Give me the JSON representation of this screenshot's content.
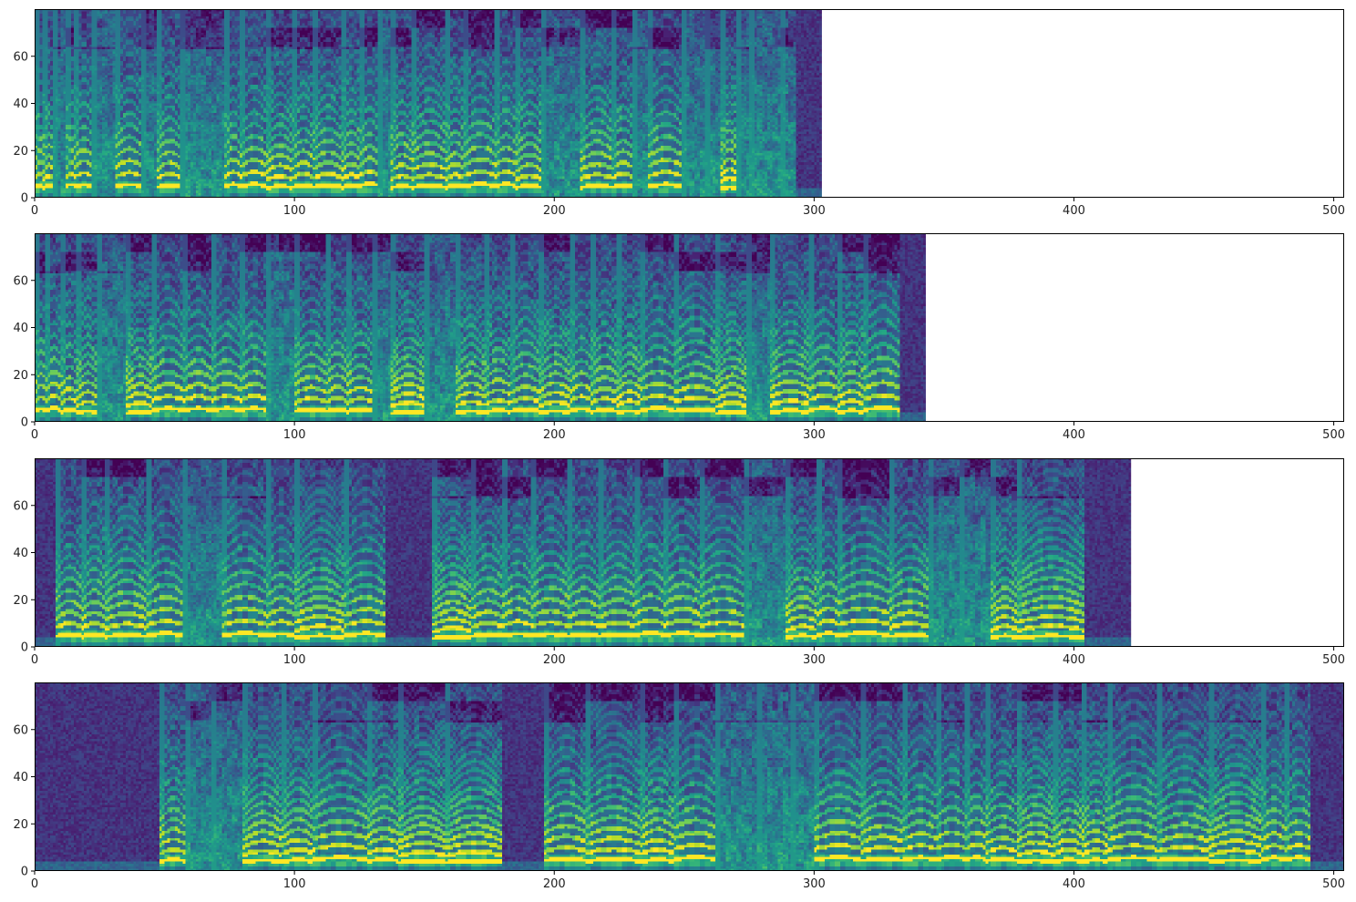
{
  "chart_data": [
    {
      "type": "heatmap",
      "title": "",
      "xlabel": "",
      "ylabel": "",
      "frames": 303,
      "mel_bins": 80,
      "xlim": [
        0,
        504
      ],
      "ylim": [
        0,
        80
      ],
      "xticks": [
        0,
        100,
        200,
        300,
        400,
        500
      ],
      "yticks": [
        0,
        20,
        40,
        60
      ],
      "colormap": "viridis",
      "silence_spans": [
        [
          293,
          303
        ]
      ],
      "onsets": [
        0,
        3,
        7,
        12,
        15,
        22,
        31,
        41,
        47,
        56,
        73,
        79,
        89,
        99,
        107,
        118,
        125,
        132,
        137,
        145,
        158,
        165,
        177,
        185,
        195,
        210,
        222,
        230,
        236,
        249,
        258,
        264,
        270,
        275,
        287,
        293
      ]
    },
    {
      "type": "heatmap",
      "title": "",
      "xlabel": "",
      "ylabel": "",
      "frames": 343,
      "mel_bins": 80,
      "xlim": [
        0,
        504
      ],
      "ylim": [
        0,
        80
      ],
      "xticks": [
        0,
        100,
        200,
        300,
        400,
        500
      ],
      "yticks": [
        0,
        20,
        40,
        60
      ],
      "colormap": "viridis",
      "silence_spans": [
        [
          333,
          343
        ]
      ],
      "onsets": [
        0,
        4,
        10,
        16,
        24,
        35,
        45,
        57,
        68,
        79,
        89,
        100,
        112,
        120,
        130,
        137,
        150,
        162,
        173,
        183,
        194,
        206,
        214,
        224,
        233,
        246,
        262,
        274,
        283,
        298,
        309,
        319,
        333
      ]
    },
    {
      "type": "heatmap",
      "title": "",
      "xlabel": "",
      "ylabel": "",
      "frames": 422,
      "mel_bins": 80,
      "xlim": [
        0,
        504
      ],
      "ylim": [
        0,
        80
      ],
      "xticks": [
        0,
        100,
        200,
        300,
        400,
        500
      ],
      "yticks": [
        0,
        20,
        40,
        60
      ],
      "colormap": "viridis",
      "silence_spans": [
        [
          0,
          8
        ],
        [
          135,
          153
        ],
        [
          404,
          422
        ]
      ],
      "onsets": [
        0,
        8,
        18,
        27,
        43,
        57,
        72,
        89,
        100,
        119,
        135,
        153,
        168,
        180,
        191,
        205,
        217,
        231,
        242,
        256,
        273,
        289,
        301,
        309,
        329,
        344,
        356,
        368,
        378,
        404
      ]
    },
    {
      "type": "heatmap",
      "title": "",
      "xlabel": "",
      "ylabel": "",
      "frames": 504,
      "mel_bins": 80,
      "xlim": [
        0,
        504
      ],
      "ylim": [
        0,
        80
      ],
      "xticks": [
        0,
        100,
        200,
        300,
        400,
        500
      ],
      "yticks": [
        0,
        20,
        40,
        60
      ],
      "colormap": "viridis",
      "silence_spans": [
        [
          0,
          48
        ],
        [
          180,
          196
        ],
        [
          491,
          504
        ]
      ],
      "onsets": [
        0,
        48,
        58,
        68,
        80,
        95,
        107,
        128,
        140,
        158,
        180,
        196,
        212,
        233,
        246,
        262,
        278,
        291,
        300,
        318,
        334,
        347,
        358,
        366,
        378,
        392,
        403,
        413,
        432,
        452,
        472,
        481,
        491
      ]
    }
  ]
}
